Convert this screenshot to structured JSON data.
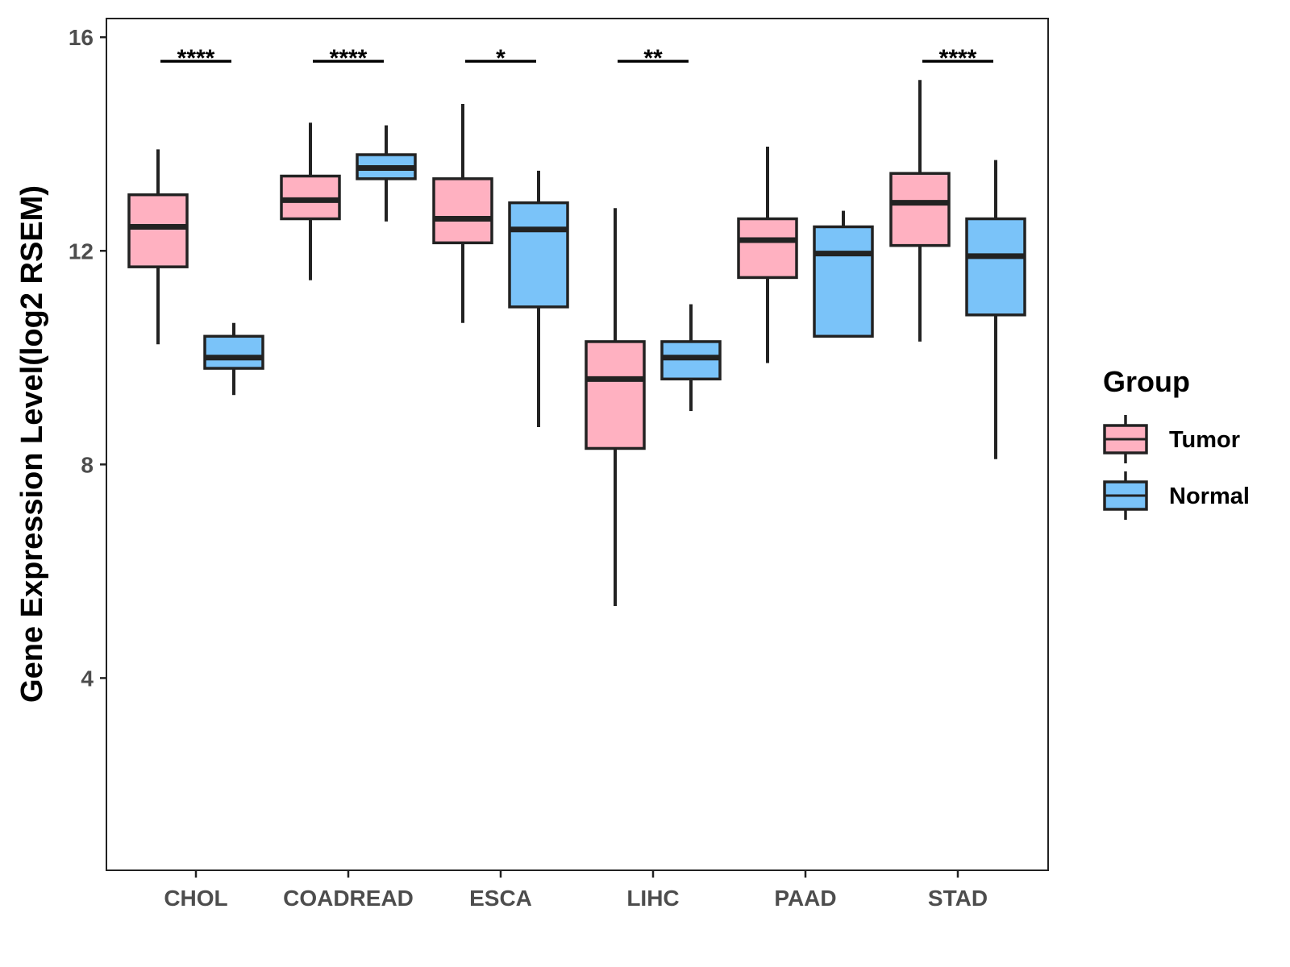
{
  "chart_data": {
    "type": "boxplot",
    "title": "",
    "xlabel": "",
    "ylabel": "Gene Expression Level(log2 RSEM)",
    "ylim": [
      0.4,
      16.35
    ],
    "yticks": [
      4,
      8,
      12,
      16
    ],
    "ytick_labels": [
      "4",
      "8",
      "12",
      "16"
    ],
    "grid": false,
    "legend": {
      "title": "Group",
      "position": "right",
      "entries": [
        {
          "label": "Tumor",
          "color": "#FFB1C1"
        },
        {
          "label": "Normal",
          "color": "#7AC3F9"
        }
      ]
    },
    "categories": [
      "CHOL",
      "COADREAD",
      "ESCA",
      "LIHC",
      "PAAD",
      "STAD"
    ],
    "series": [
      {
        "name": "Tumor",
        "color": "#FFB1C1",
        "boxes": [
          {
            "min": 10.25,
            "q1": 11.7,
            "median": 12.45,
            "q3": 13.05,
            "max": 13.9
          },
          {
            "min": 11.45,
            "q1": 12.6,
            "median": 12.95,
            "q3": 13.4,
            "max": 14.4
          },
          {
            "min": 10.65,
            "q1": 12.15,
            "median": 12.6,
            "q3": 13.35,
            "max": 14.75
          },
          {
            "min": 5.35,
            "q1": 8.3,
            "median": 9.6,
            "q3": 10.3,
            "max": 12.8
          },
          {
            "min": 9.9,
            "q1": 11.5,
            "median": 12.2,
            "q3": 12.6,
            "max": 13.95
          },
          {
            "min": 10.3,
            "q1": 12.1,
            "median": 12.9,
            "q3": 13.45,
            "max": 15.2
          }
        ]
      },
      {
        "name": "Normal",
        "color": "#7AC3F9",
        "boxes": [
          {
            "min": 9.3,
            "q1": 9.8,
            "median": 10.0,
            "q3": 10.4,
            "max": 10.65
          },
          {
            "min": 12.55,
            "q1": 13.35,
            "median": 13.55,
            "q3": 13.8,
            "max": 14.35
          },
          {
            "min": 8.7,
            "q1": 10.95,
            "median": 12.4,
            "q3": 12.9,
            "max": 13.5
          },
          {
            "min": 9.0,
            "q1": 9.6,
            "median": 10.0,
            "q3": 10.3,
            "max": 11.0
          },
          {
            "min": 10.4,
            "q1": 10.4,
            "median": 11.95,
            "q3": 12.45,
            "max": 12.75
          },
          {
            "min": 8.1,
            "q1": 10.8,
            "median": 11.9,
            "q3": 12.6,
            "max": 13.7
          }
        ]
      }
    ],
    "significance": [
      {
        "category": "CHOL",
        "label": "****"
      },
      {
        "category": "COADREAD",
        "label": "****"
      },
      {
        "category": "ESCA",
        "label": "*"
      },
      {
        "category": "LIHC",
        "label": "**"
      },
      {
        "category": "PAAD",
        "label": ""
      },
      {
        "category": "STAD",
        "label": "****"
      }
    ],
    "significance_y": 15.55
  }
}
